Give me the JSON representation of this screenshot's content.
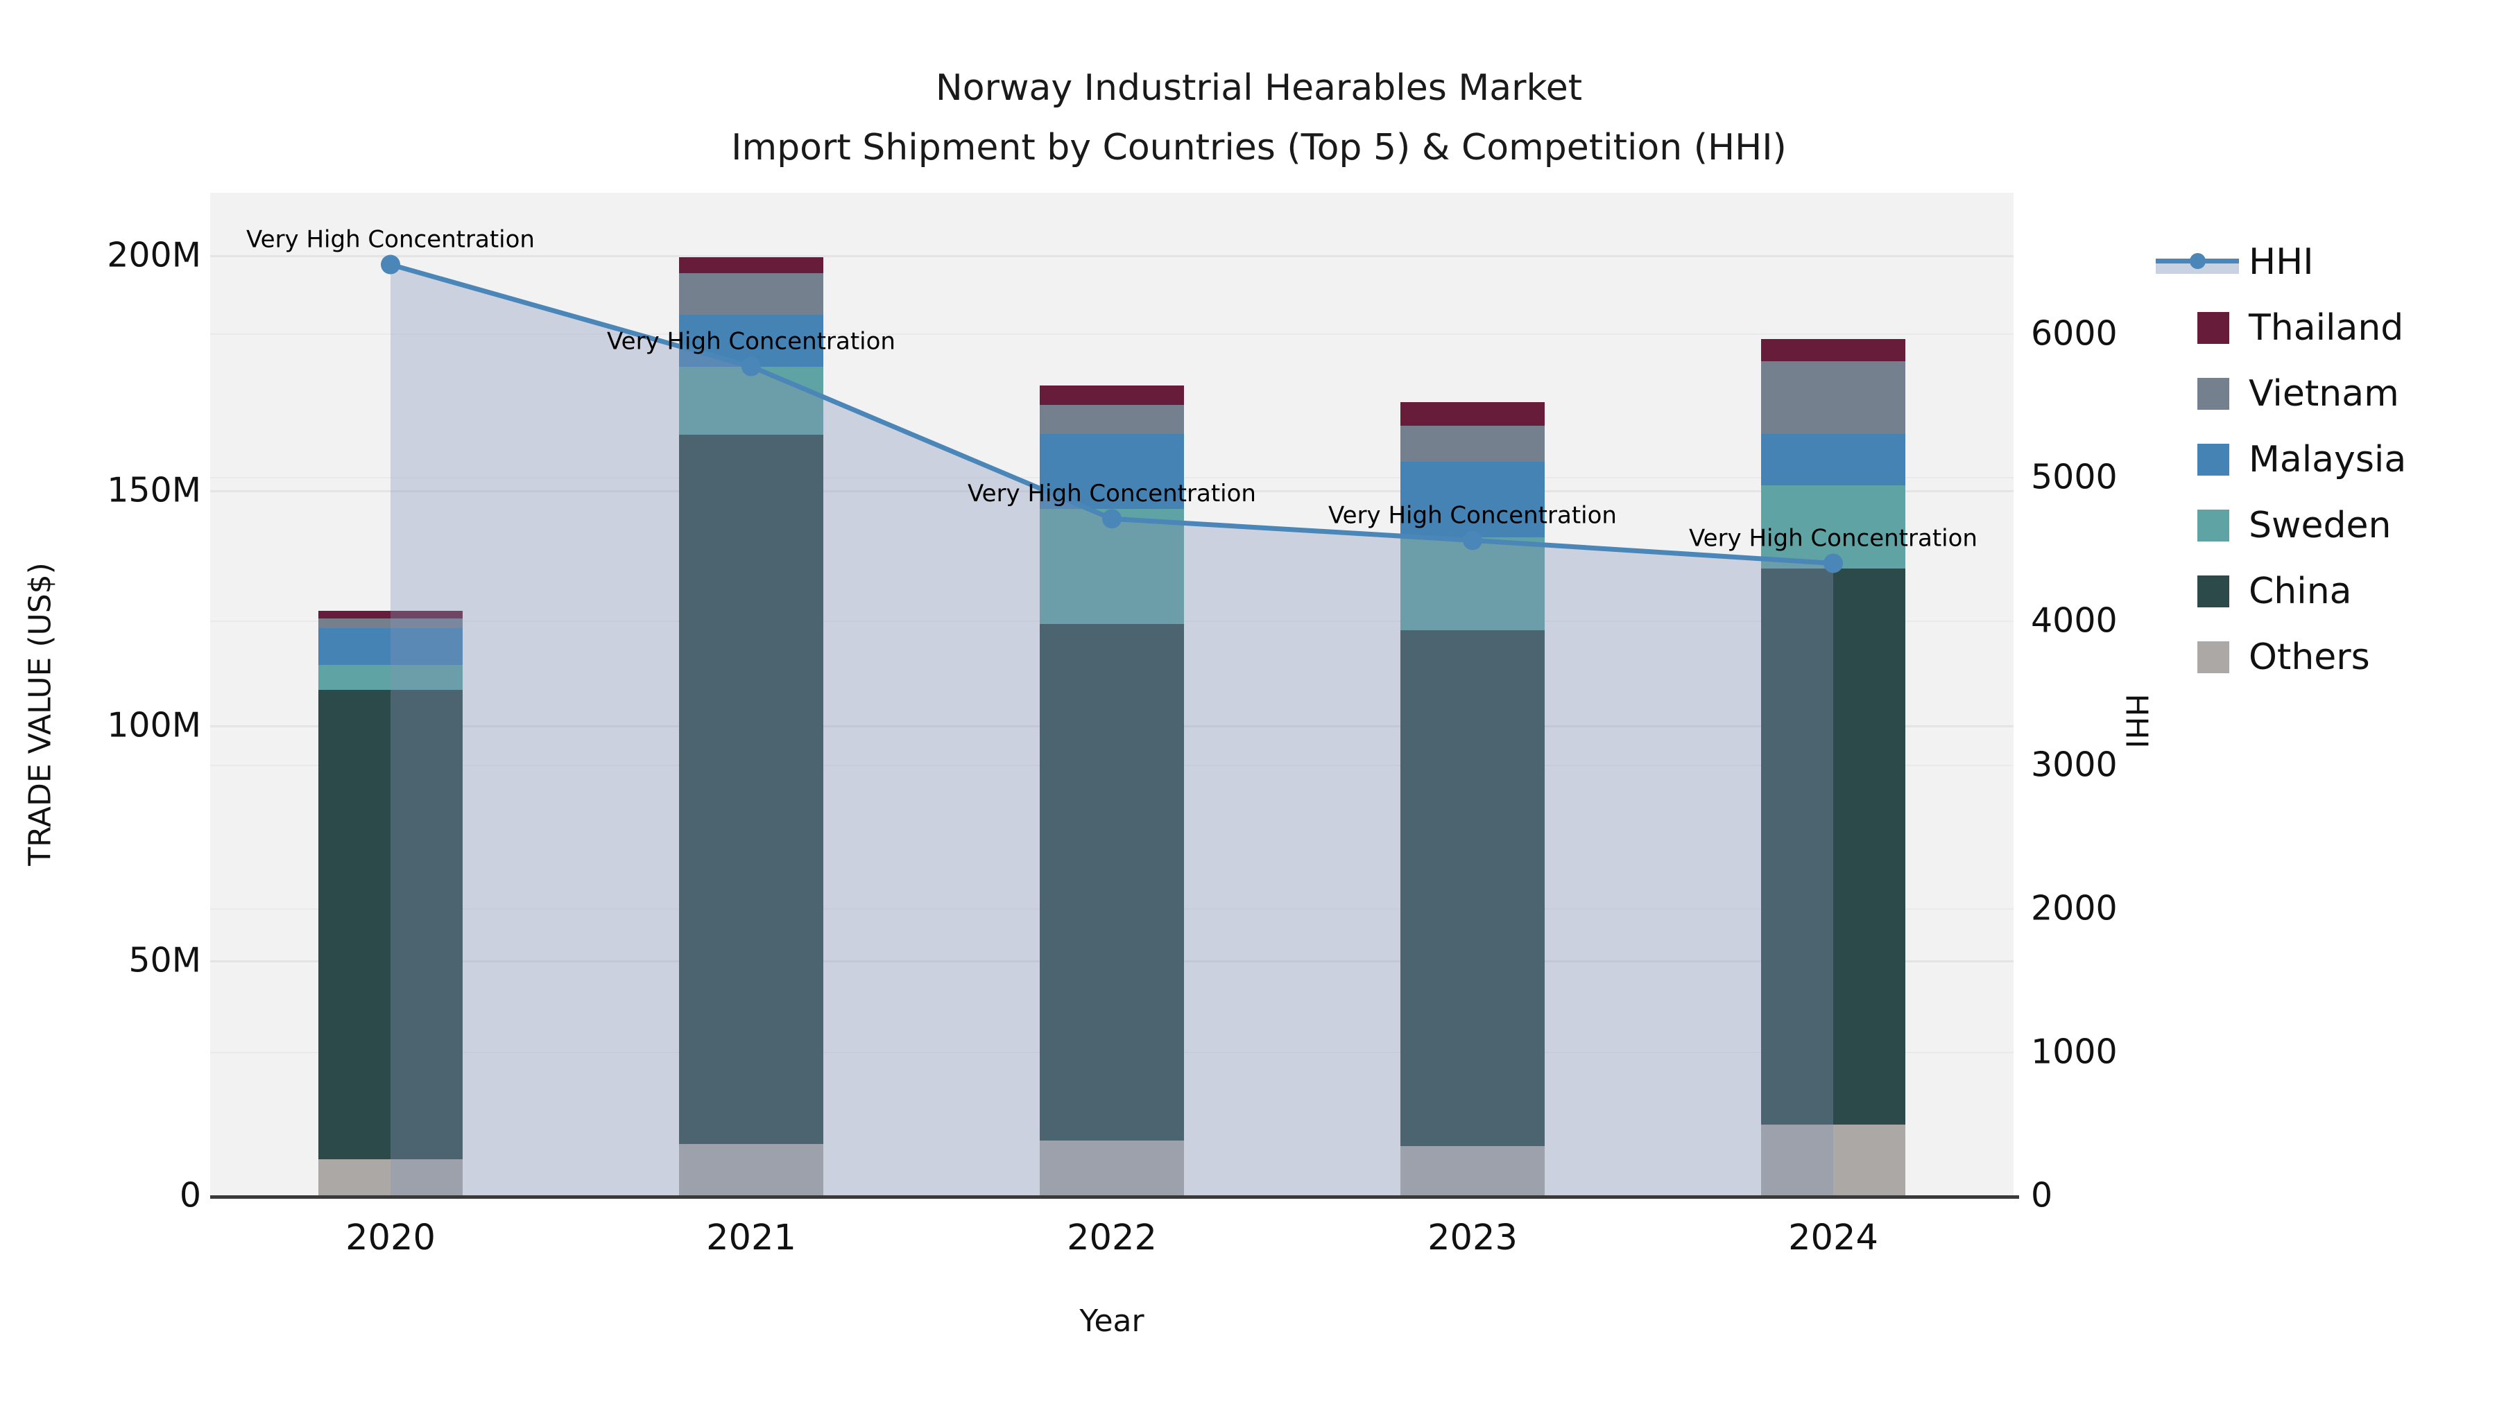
{
  "title": {
    "line1": "Norway Industrial Hearables Market",
    "line2": "Import Shipment by Countries (Top 5) & Competition (HHI)"
  },
  "axes": {
    "left": {
      "label": "TRADE VALUE (US$)",
      "tick_labels": [
        "0",
        "50M",
        "100M",
        "150M",
        "200M"
      ],
      "tick_values_m": [
        0,
        50,
        100,
        150,
        200
      ]
    },
    "right": {
      "label": "HHI",
      "tick_labels": [
        "0",
        "1000",
        "2000",
        "3000",
        "4000",
        "5000",
        "6000"
      ],
      "tick_values": [
        0,
        1000,
        2000,
        3000,
        4000,
        5000,
        6000
      ]
    },
    "x": {
      "label": "Year",
      "categories": [
        "2020",
        "2021",
        "2022",
        "2023",
        "2024"
      ]
    }
  },
  "legend": {
    "items": [
      {
        "name": "HHI",
        "type": "line"
      },
      {
        "name": "Thailand",
        "type": "patch",
        "color": "#671c3a"
      },
      {
        "name": "Vietnam",
        "type": "patch",
        "color": "#75808f"
      },
      {
        "name": "Malaysia",
        "type": "patch",
        "color": "#4583b5"
      },
      {
        "name": "Sweden",
        "type": "patch",
        "color": "#60a3a4"
      },
      {
        "name": "China",
        "type": "patch",
        "color": "#2d4a4b"
      },
      {
        "name": "Others",
        "type": "patch",
        "color": "#aba8a6"
      }
    ]
  },
  "annotation_text": "Very High Concentration",
  "chart_data": {
    "type": "bar",
    "subtype": "stacked-bars-with-line",
    "title": "Norway Industrial Hearables Market — Import Shipment by Countries (Top 5) & Competition (HHI)",
    "categories": [
      "2020",
      "2021",
      "2022",
      "2023",
      "2024"
    ],
    "value_unit": "million US$",
    "stack_order_bottom_to_top": [
      "Others",
      "China",
      "Sweden",
      "Malaysia",
      "Vietnam",
      "Thailand"
    ],
    "series": [
      {
        "name": "Others",
        "color": "#aba8a6",
        "values": [
          7.7,
          10.9,
          11.6,
          10.4,
          15.1
        ]
      },
      {
        "name": "China",
        "color": "#2d4a4b",
        "values": [
          99.8,
          150.9,
          109.9,
          109.8,
          118.3
        ]
      },
      {
        "name": "Sweden",
        "color": "#60a3a4",
        "values": [
          5.4,
          14.4,
          24.5,
          19.7,
          17.6
        ]
      },
      {
        "name": "Malaysia",
        "color": "#4583b5",
        "values": [
          7.8,
          11.1,
          15.9,
          16.1,
          10.9
        ]
      },
      {
        "name": "Vietnam",
        "color": "#75808f",
        "values": [
          2.0,
          8.9,
          6.2,
          7.7,
          15.5
        ]
      },
      {
        "name": "Thailand",
        "color": "#671c3a",
        "values": [
          1.6,
          3.4,
          4.1,
          5.0,
          4.7
        ]
      }
    ],
    "totals_m": [
      124.3,
      199.6,
      172.2,
      168.7,
      182.1
    ],
    "line_series": {
      "name": "HHI",
      "axis": "right",
      "color": "#4a86b8",
      "area_fill": "rgba(133,150,182,0.35)",
      "values": [
        6480,
        5770,
        4710,
        4560,
        4400
      ],
      "point_annotations": [
        "Very High Concentration",
        "Very High Concentration",
        "Very High Concentration",
        "Very High Concentration",
        "Very High Concentration"
      ]
    },
    "xlabel": "Year",
    "ylabel_left": "TRADE VALUE (US$)",
    "ylabel_right": "HHI",
    "ylim_left_m": [
      0,
      200
    ],
    "ylim_right": [
      0,
      6000
    ],
    "grid": true,
    "legend_position": "right"
  }
}
